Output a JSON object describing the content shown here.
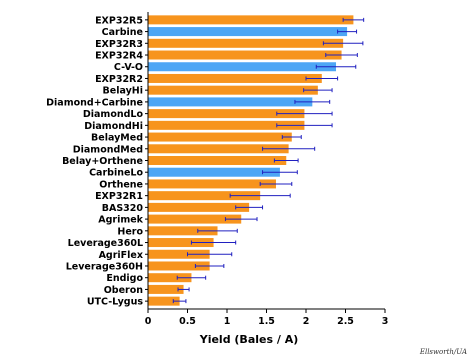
{
  "chart_data": {
    "type": "bar",
    "orientation": "horizontal",
    "xlabel": "Yield (Bales / A)",
    "xlim": [
      0,
      3
    ],
    "xticks": [
      "0",
      "0.5",
      "1",
      "1.5",
      "2",
      "2.5",
      "3"
    ],
    "grid": false,
    "legend": "none",
    "colors": {
      "default": "#f7941d",
      "highlight": "#4da6f5",
      "error_bar": "#2020c0"
    },
    "bars": [
      {
        "label": "EXP32R5",
        "value": 2.6,
        "error": 0.13,
        "highlight": false
      },
      {
        "label": "Carbine",
        "value": 2.52,
        "error": 0.12,
        "highlight": true
      },
      {
        "label": "EXP32R3",
        "value": 2.47,
        "error": 0.25,
        "highlight": false
      },
      {
        "label": "EXP32R4",
        "value": 2.45,
        "error": 0.2,
        "highlight": false
      },
      {
        "label": "C-V-O",
        "value": 2.38,
        "error": 0.25,
        "highlight": true
      },
      {
        "label": "EXP32R2",
        "value": 2.2,
        "error": 0.2,
        "highlight": false
      },
      {
        "label": "BelayHi",
        "value": 2.15,
        "error": 0.18,
        "highlight": false
      },
      {
        "label": "Diamond+Carbine",
        "value": 2.08,
        "error": 0.22,
        "highlight": true
      },
      {
        "label": "DiamondLo",
        "value": 1.98,
        "error": 0.35,
        "highlight": false
      },
      {
        "label": "DiamondHi",
        "value": 1.98,
        "error": 0.35,
        "highlight": false
      },
      {
        "label": "BelayMed",
        "value": 1.82,
        "error": 0.12,
        "highlight": false
      },
      {
        "label": "DiamondMed",
        "value": 1.78,
        "error": 0.33,
        "highlight": false
      },
      {
        "label": "Belay+Orthene",
        "value": 1.75,
        "error": 0.15,
        "highlight": false
      },
      {
        "label": "CarbineLo",
        "value": 1.67,
        "error": 0.22,
        "highlight": true
      },
      {
        "label": "Orthene",
        "value": 1.62,
        "error": 0.2,
        "highlight": false
      },
      {
        "label": "EXP32R1",
        "value": 1.42,
        "error": 0.38,
        "highlight": false
      },
      {
        "label": "BAS320",
        "value": 1.28,
        "error": 0.17,
        "highlight": false
      },
      {
        "label": "Agrimek",
        "value": 1.18,
        "error": 0.2,
        "highlight": false
      },
      {
        "label": "Hero",
        "value": 0.88,
        "error": 0.25,
        "highlight": false
      },
      {
        "label": "Leverage360L",
        "value": 0.83,
        "error": 0.28,
        "highlight": false
      },
      {
        "label": "AgriFlex",
        "value": 0.78,
        "error": 0.28,
        "highlight": false
      },
      {
        "label": "Leverage360H",
        "value": 0.78,
        "error": 0.18,
        "highlight": false
      },
      {
        "label": "Endigo",
        "value": 0.55,
        "error": 0.18,
        "highlight": false
      },
      {
        "label": "Oberon",
        "value": 0.45,
        "error": 0.07,
        "highlight": false
      },
      {
        "label": "UTC-Lygus",
        "value": 0.4,
        "error": 0.08,
        "highlight": false
      }
    ]
  },
  "credit": "Ellsworth/UA"
}
